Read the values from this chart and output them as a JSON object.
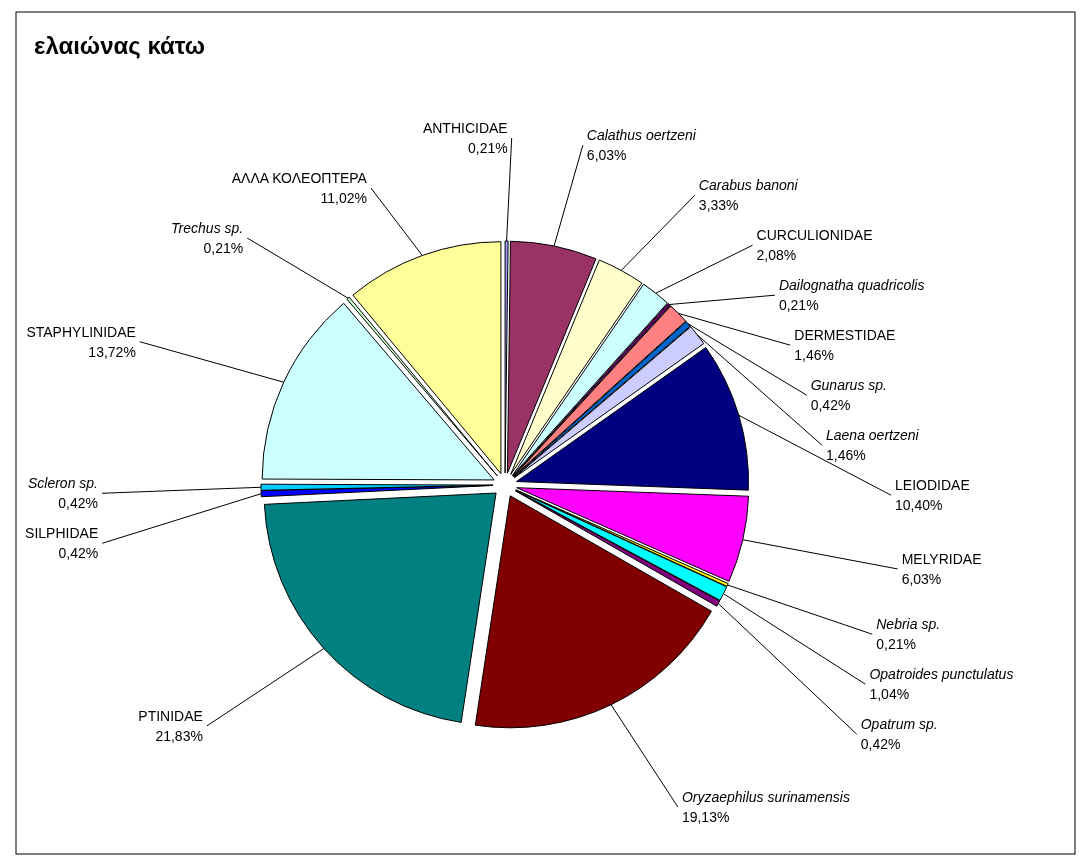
{
  "chart_data": {
    "type": "pie",
    "title": "ελαιώνας κάτω",
    "categories": [
      "ANTHICIDAE",
      "Calathus oertzeni",
      "Carabus banoni",
      "CURCULIONIDAE",
      "Dailognatha quadricolis",
      "DERMESTIDAE",
      "Gunarus sp.",
      "Laena oertzeni",
      "LEIODIDAE",
      "MELYRIDAE",
      "Nebria sp.",
      "Opatroides punctulatus",
      "Opatrum sp.",
      "Oryzaephilus surinamensis",
      "PTINIDAE",
      "SILPHIDAE",
      "Scleron sp.",
      "STAPHYLINIDAE",
      "Trechus sp.",
      "ΑΛΛΑ ΚΟΛΕΟΠΤΕΡΑ"
    ],
    "values": [
      0.21,
      6.03,
      3.33,
      2.08,
      0.21,
      1.46,
      0.42,
      1.46,
      10.4,
      6.03,
      0.21,
      1.04,
      0.42,
      19.13,
      21.83,
      0.42,
      0.42,
      13.72,
      0.21,
      11.02
    ],
    "value_labels": [
      "0,21%",
      "6,03%",
      "3,33%",
      "2,08%",
      "0,21%",
      "1,46%",
      "0,42%",
      "1,46%",
      "10,40%",
      "6,03%",
      "0,21%",
      "1,04%",
      "0,42%",
      "19,13%",
      "21,83%",
      "0,42%",
      "0,42%",
      "13,72%",
      "0,21%",
      "11,02%"
    ],
    "colors": [
      "#9999ff",
      "#993366",
      "#ffffcc",
      "#ccffff",
      "#660066",
      "#ff8080",
      "#0066cc",
      "#ccccff",
      "#000080",
      "#ff00ff",
      "#ffff00",
      "#00ffff",
      "#800080",
      "#800000",
      "#008080",
      "#0000ff",
      "#00ccff",
      "#ccffff",
      "#ccffcc",
      "#ffff99"
    ]
  }
}
